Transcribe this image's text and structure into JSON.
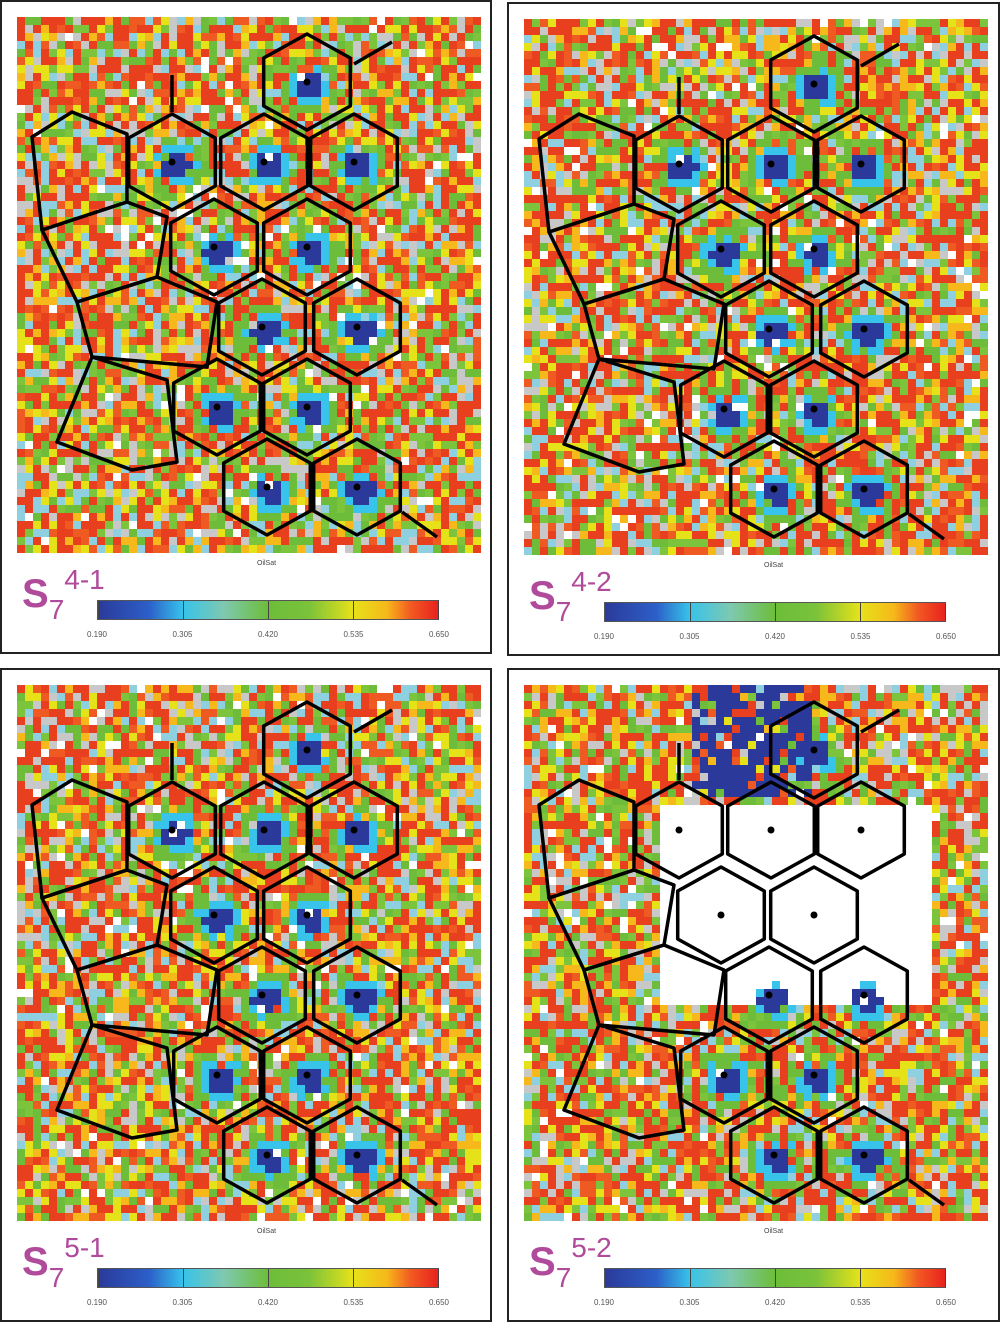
{
  "chart_data": {
    "type": "heatmap",
    "colorbar_label": "OilSat",
    "range": [
      0.19,
      0.65
    ],
    "colorbar_ticks": [
      "0.190",
      "0.305",
      "0.420",
      "0.535",
      "0.650"
    ],
    "colors": [
      "#2b3a9a",
      "#37c3ea",
      "#6dbd3a",
      "#e6e21a",
      "#e8221e"
    ],
    "panels": [
      {
        "label": "S",
        "sub": "7",
        "sup": "4-1"
      },
      {
        "label": "S",
        "sub": "7",
        "sup": "4-2"
      },
      {
        "label": "S",
        "sub": "7",
        "sup": "5-1"
      },
      {
        "label": "S",
        "sub": "7",
        "sup": "5-2"
      }
    ]
  }
}
